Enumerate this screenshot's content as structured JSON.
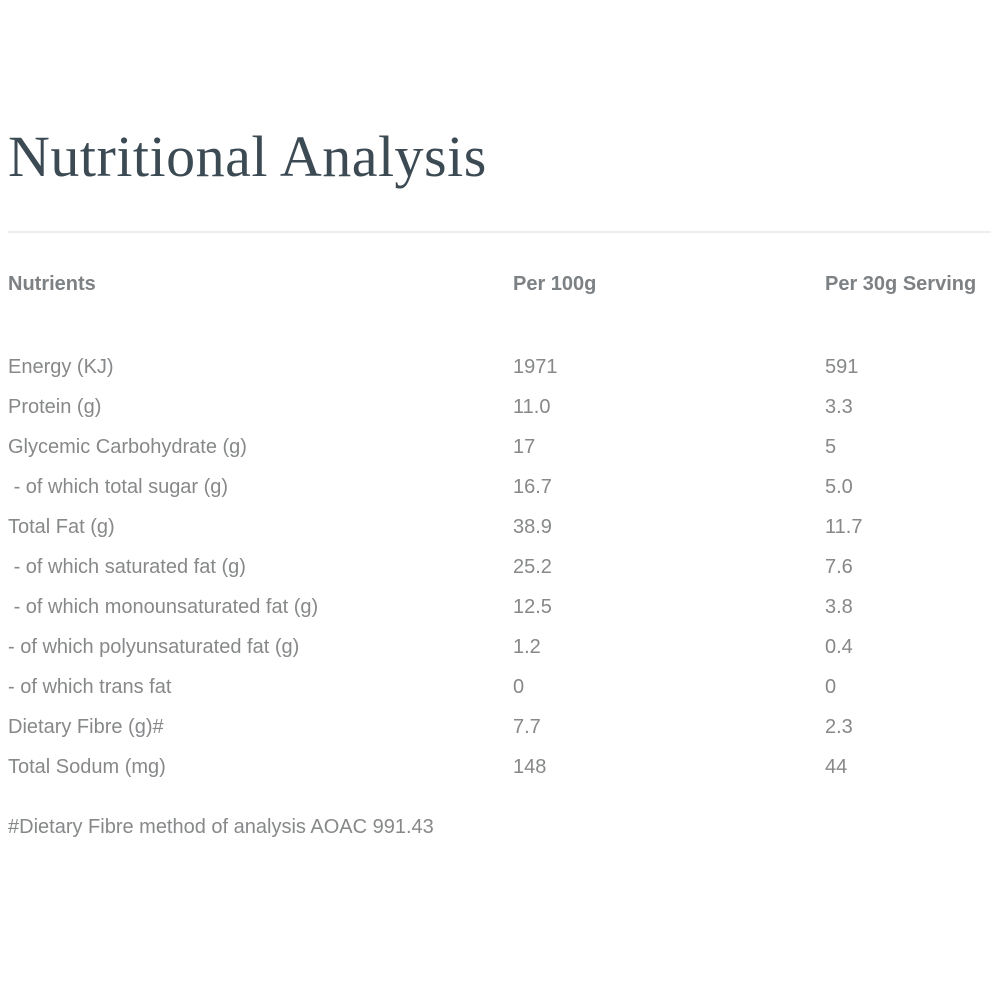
{
  "page": {
    "title": "Nutritional Analysis",
    "colors": {
      "background": "#ffffff",
      "title_text": "#3c4a54",
      "header_text": "#7d8184",
      "body_text": "#868889",
      "divider": "#ededed"
    }
  },
  "table": {
    "columns": [
      "Nutrients",
      "Per 100g",
      "Per 30g Serving"
    ],
    "rows": [
      {
        "label": "Energy (KJ)",
        "per_100g": "1971",
        "per_30g": "591"
      },
      {
        "label": "Protein (g)",
        "per_100g": "11.0",
        "per_30g": "3.3"
      },
      {
        "label": "Glycemic Carbohydrate (g)",
        "per_100g": "17",
        "per_30g": "5"
      },
      {
        "label": " - of which total sugar (g)",
        "per_100g": "16.7",
        "per_30g": "5.0"
      },
      {
        "label": "Total Fat (g)",
        "per_100g": "38.9",
        "per_30g": "11.7"
      },
      {
        "label": " - of which saturated fat (g)",
        "per_100g": "25.2",
        "per_30g": "7.6"
      },
      {
        "label": " - of which monounsaturated fat (g)",
        "per_100g": "12.5",
        "per_30g": "3.8"
      },
      {
        "label": "- of which polyunsaturated fat (g)",
        "per_100g": "1.2",
        "per_30g": "0.4"
      },
      {
        "label": "- of which trans fat",
        "per_100g": "0",
        "per_30g": "0"
      },
      {
        "label": "Dietary Fibre (g)#",
        "per_100g": "7.7",
        "per_30g": "2.3"
      },
      {
        "label": "Total Sodum (mg)",
        "per_100g": "148",
        "per_30g": "44"
      }
    ],
    "footnote": "#Dietary Fibre method of analysis AOAC 991.43"
  }
}
